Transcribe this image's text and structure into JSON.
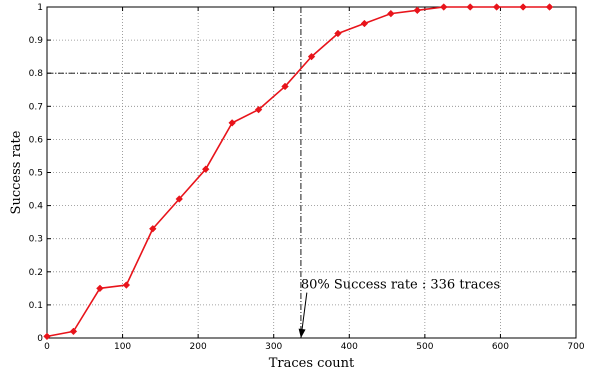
{
  "chart_data": {
    "type": "line",
    "title": "",
    "xlabel": "Traces count",
    "ylabel": "Success rate",
    "xlim": [
      0,
      700
    ],
    "ylim": [
      0,
      1
    ],
    "grid": true,
    "x_ticks": [
      0,
      100,
      200,
      300,
      400,
      500,
      600,
      700
    ],
    "y_ticks": [
      0,
      0.1,
      0.2,
      0.3,
      0.4,
      0.5,
      0.6,
      0.7,
      0.8,
      0.9,
      1
    ],
    "y_tick_labels": [
      "0",
      "0.1",
      "0.2",
      "0.3",
      "0.4",
      "0.5",
      "0.6",
      "0.7",
      "0.8",
      "0.9",
      "1"
    ],
    "series": [
      {
        "color": "#e8141b",
        "marker": "diamond",
        "x": [
          0,
          35,
          70,
          105,
          140,
          175,
          210,
          245,
          280,
          315,
          350,
          385,
          420,
          455,
          490,
          525,
          560,
          595,
          630,
          665
        ],
        "y": [
          0.005,
          0.02,
          0.15,
          0.16,
          0.33,
          0.42,
          0.51,
          0.65,
          0.69,
          0.76,
          0.85,
          0.92,
          0.95,
          0.98,
          0.99,
          1.0,
          1.0,
          1.0,
          1.0,
          1.0
        ]
      }
    ],
    "reference_lines": {
      "horizontal_y": 0.8,
      "vertical_x": 336
    },
    "annotation": {
      "text": "80% Success rate : 336 traces",
      "point": [
        336,
        0
      ],
      "text_pos": [
        410,
        0.125
      ]
    }
  }
}
